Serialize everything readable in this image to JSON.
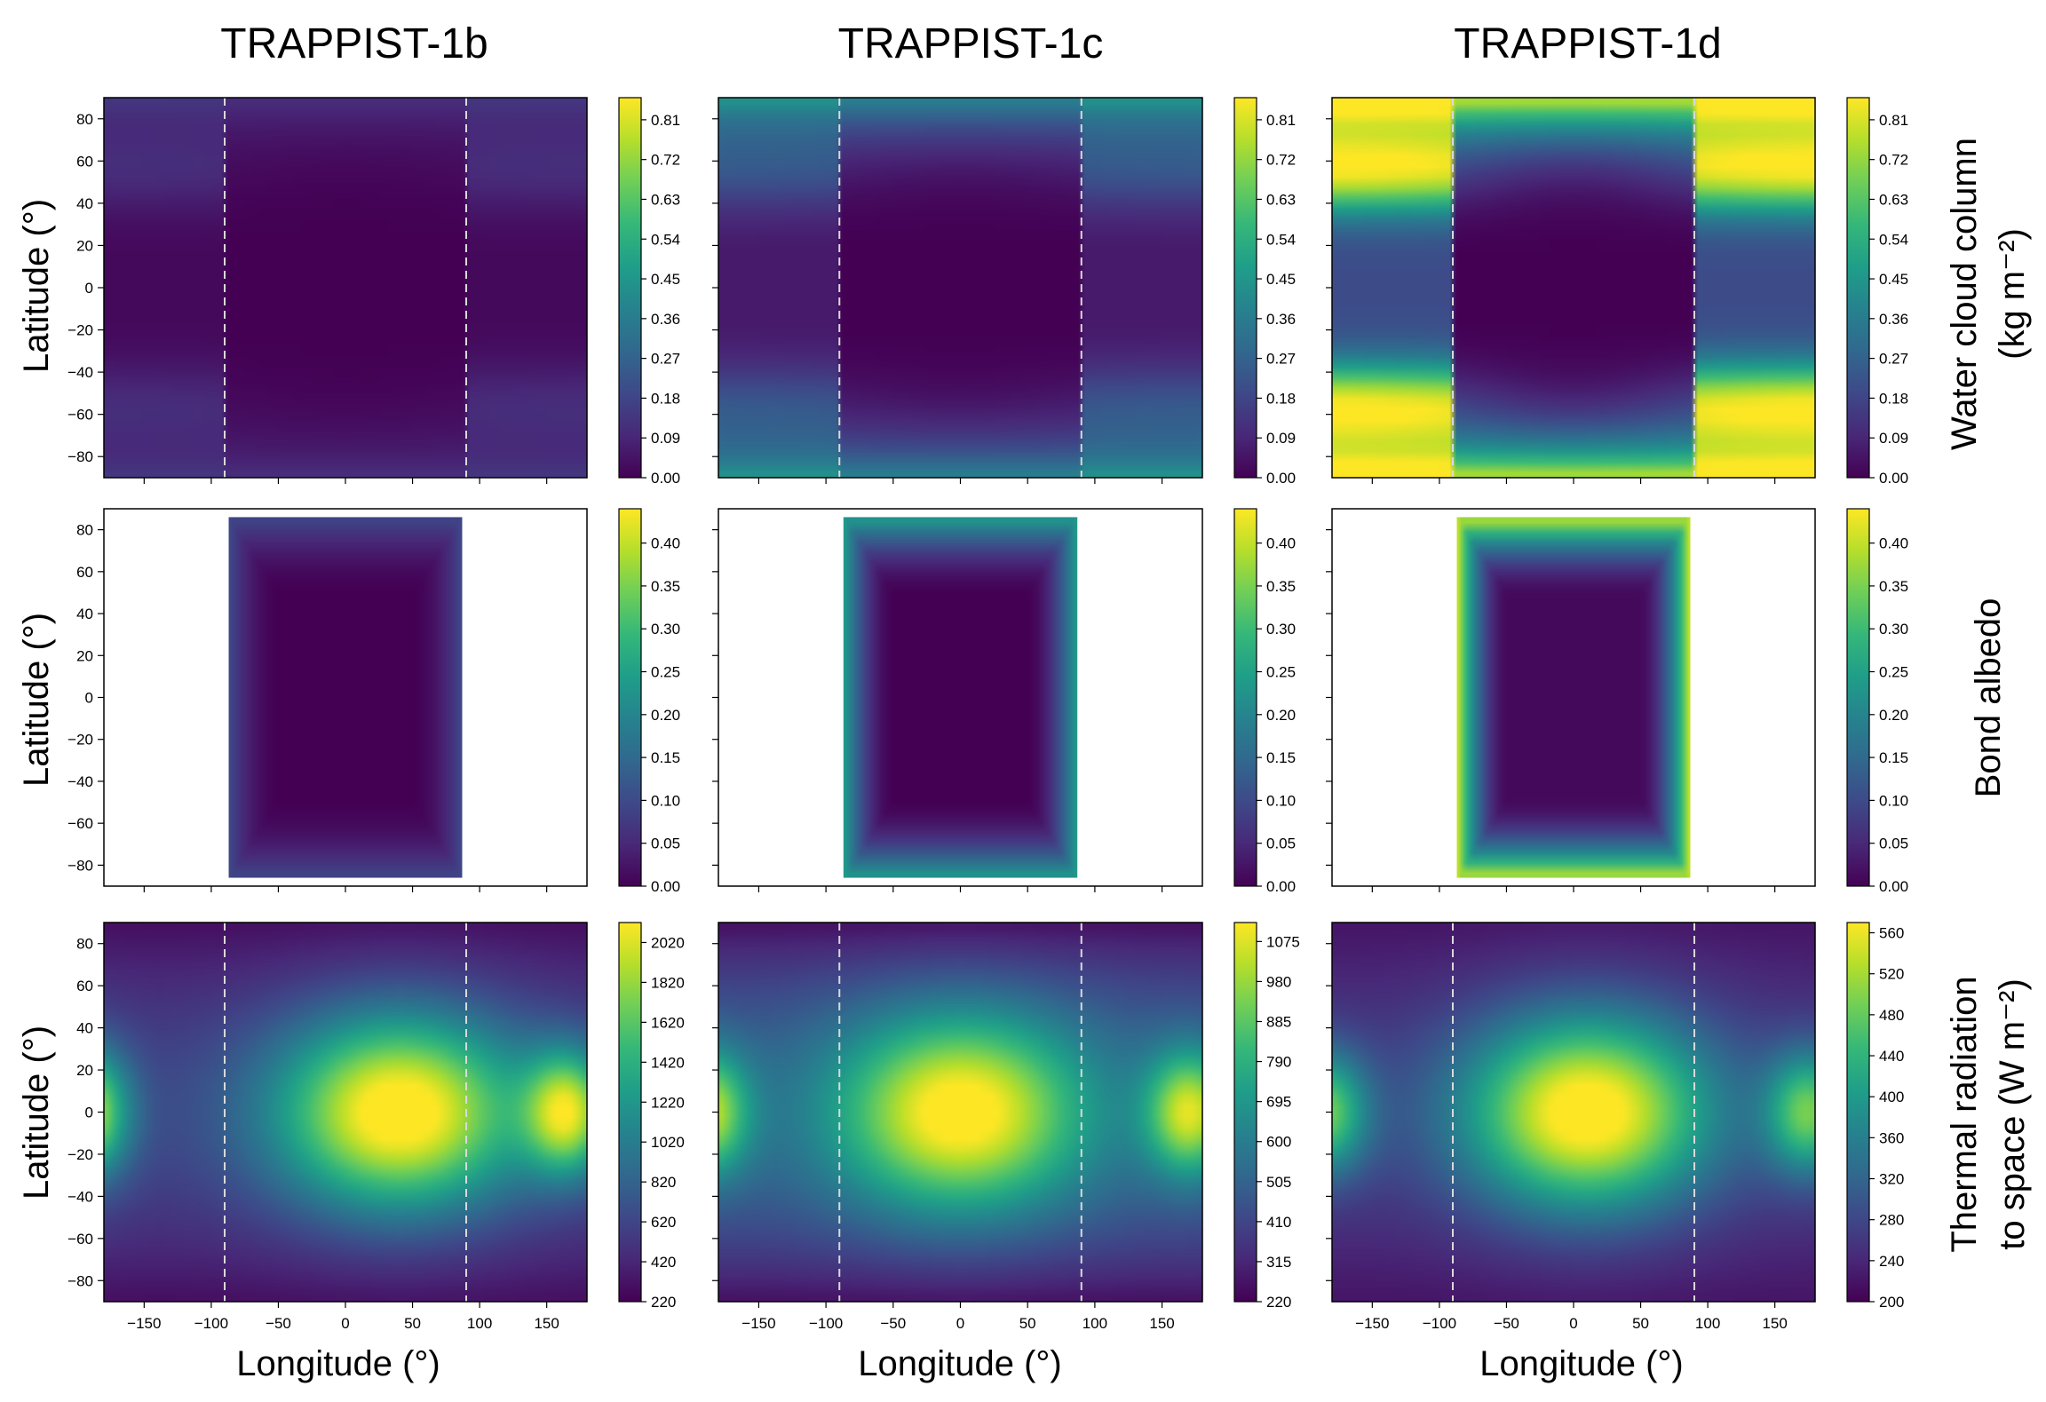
{
  "figure": {
    "column_titles": [
      "TRAPPIST-1b",
      "TRAPPIST-1c",
      "TRAPPIST-1d"
    ],
    "row_labels": [
      {
        "lines": [
          "Water cloud column",
          "(kg m⁻²)"
        ]
      },
      {
        "lines": [
          "Bond albedo"
        ]
      },
      {
        "lines": [
          "Thermal radiation",
          "to space (W m⁻²)"
        ]
      }
    ],
    "ylabel": "Latitude (°)",
    "xlabel": "Longitude (°)"
  },
  "colors": {
    "colormap": "viridis",
    "viridis_stops": [
      "#440154",
      "#482878",
      "#3e4989",
      "#31688e",
      "#26828e",
      "#1f9e89",
      "#35b779",
      "#6ece58",
      "#b5de2b",
      "#fde725"
    ],
    "terminator_line": "#d9d9d9",
    "axes_frame": "#000000",
    "masked_background": "#ffffff"
  },
  "chart_data": [
    {
      "type": "heatmap",
      "planet": "TRAPPIST-1b",
      "variable": "Water cloud column",
      "unit": "kg m-2",
      "xlim": [
        -180,
        180
      ],
      "ylim": [
        -90,
        90
      ],
      "x_ticks": [
        -150,
        -100,
        -50,
        0,
        50,
        100,
        150
      ],
      "y_ticks": [
        -80,
        -60,
        -40,
        -20,
        0,
        20,
        40,
        60,
        80
      ],
      "show_xticklabels": false,
      "terminator_lines": [
        -90,
        90
      ],
      "colorbar": {
        "min": 0.0,
        "max": 0.86,
        "ticks": [
          "0.00",
          "0.09",
          "0.18",
          "0.27",
          "0.36",
          "0.45",
          "0.54",
          "0.63",
          "0.72",
          "0.81"
        ]
      },
      "field": {
        "kind": "cloud",
        "nightside": 0.02,
        "polar_peak": 0.12,
        "mid_lat": 0.06
      }
    },
    {
      "type": "heatmap",
      "planet": "TRAPPIST-1c",
      "variable": "Water cloud column",
      "unit": "kg m-2",
      "xlim": [
        -180,
        180
      ],
      "ylim": [
        -90,
        90
      ],
      "x_ticks": [
        -150,
        -100,
        -50,
        0,
        50,
        100,
        150
      ],
      "y_ticks": [
        -80,
        -60,
        -40,
        -20,
        0,
        20,
        40,
        60,
        80
      ],
      "show_xticklabels": false,
      "terminator_lines": [
        -90,
        90
      ],
      "colorbar": {
        "min": 0.0,
        "max": 0.86,
        "ticks": [
          "0.00",
          "0.09",
          "0.18",
          "0.27",
          "0.36",
          "0.45",
          "0.54",
          "0.63",
          "0.72",
          "0.81"
        ]
      },
      "field": {
        "kind": "cloud",
        "nightside": 0.06,
        "polar_peak": 0.4,
        "mid_lat": 0.1
      }
    },
    {
      "type": "heatmap",
      "planet": "TRAPPIST-1d",
      "variable": "Water cloud column",
      "unit": "kg m-2",
      "xlim": [
        -180,
        180
      ],
      "ylim": [
        -90,
        90
      ],
      "x_ticks": [
        -150,
        -100,
        -50,
        0,
        50,
        100,
        150
      ],
      "y_ticks": [
        -80,
        -60,
        -40,
        -20,
        0,
        20,
        40,
        60,
        80
      ],
      "show_xticklabels": false,
      "terminator_lines": [
        -90,
        90
      ],
      "colorbar": {
        "min": 0.0,
        "max": 0.86,
        "ticks": [
          "0.00",
          "0.09",
          "0.18",
          "0.27",
          "0.36",
          "0.45",
          "0.54",
          "0.63",
          "0.72",
          "0.81"
        ]
      },
      "field": {
        "kind": "cloud",
        "nightside": 0.2,
        "polar_peak": 0.82,
        "mid_lat": 0.45
      }
    },
    {
      "type": "heatmap",
      "planet": "TRAPPIST-1b",
      "variable": "Bond albedo",
      "unit": "",
      "xlim": [
        -180,
        180
      ],
      "ylim": [
        -90,
        90
      ],
      "x_ticks": [
        -150,
        -100,
        -50,
        0,
        50,
        100,
        150
      ],
      "y_ticks": [
        -80,
        -60,
        -40,
        -20,
        0,
        20,
        40,
        60,
        80
      ],
      "show_xticklabels": false,
      "terminator_lines": [],
      "data_extent": {
        "x": [
          -87,
          87
        ],
        "y": [
          -86,
          86
        ]
      },
      "colorbar": {
        "min": 0.0,
        "max": 0.44,
        "ticks": [
          "0.00",
          "0.05",
          "0.10",
          "0.15",
          "0.20",
          "0.25",
          "0.30",
          "0.35",
          "0.40"
        ]
      },
      "field": {
        "kind": "albedo",
        "center": 0.0,
        "edge": 0.1
      }
    },
    {
      "type": "heatmap",
      "planet": "TRAPPIST-1c",
      "variable": "Bond albedo",
      "unit": "",
      "xlim": [
        -180,
        180
      ],
      "ylim": [
        -90,
        90
      ],
      "x_ticks": [
        -150,
        -100,
        -50,
        0,
        50,
        100,
        150
      ],
      "y_ticks": [
        -80,
        -60,
        -40,
        -20,
        0,
        20,
        40,
        60,
        80
      ],
      "show_xticklabels": false,
      "terminator_lines": [],
      "data_extent": {
        "x": [
          -87,
          87
        ],
        "y": [
          -86,
          86
        ]
      },
      "colorbar": {
        "min": 0.0,
        "max": 0.44,
        "ticks": [
          "0.00",
          "0.05",
          "0.10",
          "0.15",
          "0.20",
          "0.25",
          "0.30",
          "0.35",
          "0.40"
        ]
      },
      "field": {
        "kind": "albedo",
        "center": 0.0,
        "edge": 0.25
      }
    },
    {
      "type": "heatmap",
      "planet": "TRAPPIST-1d",
      "variable": "Bond albedo",
      "unit": "",
      "xlim": [
        -180,
        180
      ],
      "ylim": [
        -90,
        90
      ],
      "x_ticks": [
        -150,
        -100,
        -50,
        0,
        50,
        100,
        150
      ],
      "y_ticks": [
        -80,
        -60,
        -40,
        -20,
        0,
        20,
        40,
        60,
        80
      ],
      "show_xticklabels": false,
      "terminator_lines": [],
      "data_extent": {
        "x": [
          -87,
          87
        ],
        "y": [
          -86,
          86
        ]
      },
      "colorbar": {
        "min": 0.0,
        "max": 0.44,
        "ticks": [
          "0.00",
          "0.05",
          "0.10",
          "0.15",
          "0.20",
          "0.25",
          "0.30",
          "0.35",
          "0.40"
        ]
      },
      "field": {
        "kind": "albedo",
        "center": 0.01,
        "edge": 0.42
      }
    },
    {
      "type": "heatmap",
      "planet": "TRAPPIST-1b",
      "variable": "Thermal radiation to space",
      "unit": "W m-2",
      "xlim": [
        -180,
        180
      ],
      "ylim": [
        -90,
        90
      ],
      "x_ticks": [
        -150,
        -100,
        -50,
        0,
        50,
        100,
        150
      ],
      "y_ticks": [
        -80,
        -60,
        -40,
        -20,
        0,
        20,
        40,
        60,
        80
      ],
      "show_xticklabels": true,
      "terminator_lines": [
        -90,
        90
      ],
      "colorbar": {
        "min": 220,
        "max": 2120,
        "ticks": [
          "220",
          "420",
          "620",
          "820",
          "1020",
          "1220",
          "1420",
          "1620",
          "1820",
          "2020"
        ]
      },
      "field": {
        "kind": "olr",
        "peak": 2080,
        "hot_lon": 40,
        "night": 420,
        "polar": 260,
        "edge_lon": 165,
        "edge_val": 1900
      }
    },
    {
      "type": "heatmap",
      "planet": "TRAPPIST-1c",
      "variable": "Thermal radiation to space",
      "unit": "W m-2",
      "xlim": [
        -180,
        180
      ],
      "ylim": [
        -90,
        90
      ],
      "x_ticks": [
        -150,
        -100,
        -50,
        0,
        50,
        100,
        150
      ],
      "y_ticks": [
        -80,
        -60,
        -40,
        -20,
        0,
        20,
        40,
        60,
        80
      ],
      "show_xticklabels": true,
      "terminator_lines": [
        -90,
        90
      ],
      "colorbar": {
        "min": 220,
        "max": 1120,
        "ticks": [
          "220",
          "315",
          "410",
          "505",
          "600",
          "695",
          "790",
          "885",
          "980",
          "1075"
        ]
      },
      "field": {
        "kind": "olr",
        "peak": 1100,
        "hot_lon": 0,
        "night": 420,
        "polar": 240,
        "edge_lon": 170,
        "edge_val": 1060
      }
    },
    {
      "type": "heatmap",
      "planet": "TRAPPIST-1d",
      "variable": "Thermal radiation to space",
      "unit": "W m-2",
      "xlim": [
        -180,
        180
      ],
      "ylim": [
        -90,
        90
      ],
      "x_ticks": [
        -150,
        -100,
        -50,
        0,
        50,
        100,
        150
      ],
      "y_ticks": [
        -80,
        -60,
        -40,
        -20,
        0,
        20,
        40,
        60,
        80
      ],
      "show_xticklabels": true,
      "terminator_lines": [
        -90,
        90
      ],
      "colorbar": {
        "min": 200,
        "max": 570,
        "ticks": [
          "200",
          "240",
          "280",
          "320",
          "360",
          "400",
          "440",
          "480",
          "520",
          "560"
        ]
      },
      "field": {
        "kind": "olr",
        "peak": 560,
        "hot_lon": 10,
        "night": 230,
        "polar": 215,
        "edge_lon": 175,
        "edge_val": 470
      }
    }
  ]
}
